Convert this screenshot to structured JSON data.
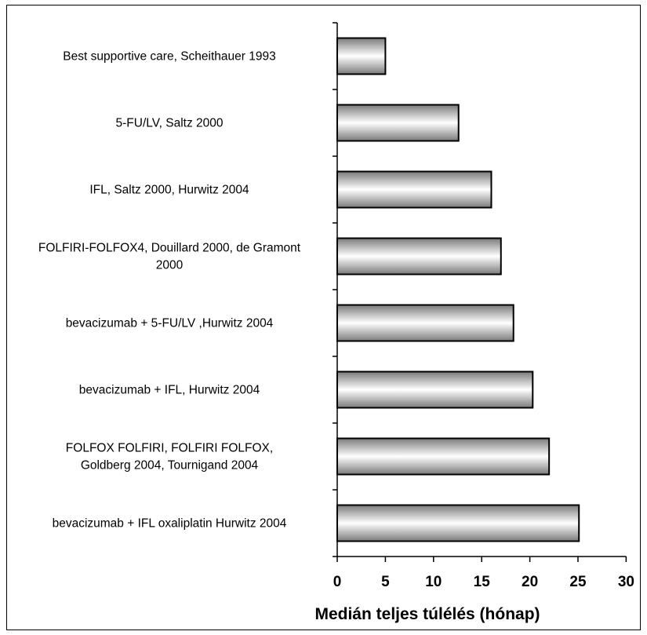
{
  "chart_data": {
    "type": "bar",
    "orientation": "horizontal",
    "categories": [
      "Best supportive care, Scheithauer 1993",
      "5-FU/LV, Saltz 2000",
      "IFL, Saltz 2000, Hurwitz 2004",
      "FOLFIRI-FOLFOX4, Douillard 2000, de Gramont 2000",
      "bevacizumab + 5-FU/LV ,Hurwitz 2004",
      "bevacizumab + IFL, Hurwitz 2004",
      "FOLFOX  FOLFIRI, FOLFIRI  FOLFOX, Goldberg 2004, Tournigand 2004",
      "bevacizumab + IFL  oxaliplatin Hurwitz 2004"
    ],
    "category_lines": [
      [
        "Best supportive care, Scheithauer 1993"
      ],
      [
        "5-FU/LV, Saltz 2000"
      ],
      [
        "IFL, Saltz 2000, Hurwitz 2004"
      ],
      [
        "FOLFIRI-FOLFOX4, Douillard 2000, de Gramont",
        "2000"
      ],
      [
        "bevacizumab + 5-FU/LV ,Hurwitz 2004"
      ],
      [
        "bevacizumab + IFL, Hurwitz 2004"
      ],
      [
        "FOLFOX  FOLFIRI, FOLFIRI  FOLFOX,",
        "Goldberg 2004, Tournigand 2004"
      ],
      [
        "bevacizumab + IFL  oxaliplatin Hurwitz 2004"
      ]
    ],
    "values": [
      5,
      12.6,
      16,
      17,
      18.3,
      20.3,
      22,
      25.1
    ],
    "xlabel": "Medián teljes túlélés (hónap)",
    "ylabel": "",
    "xlim": [
      0,
      30
    ],
    "xticks": [
      0,
      5,
      10,
      15,
      20,
      25,
      30
    ],
    "grid": false,
    "legend": "none",
    "colors": {
      "bar_dark": "#7a7a7a",
      "bar_light": "#ffffff",
      "outline": "#000000"
    }
  }
}
